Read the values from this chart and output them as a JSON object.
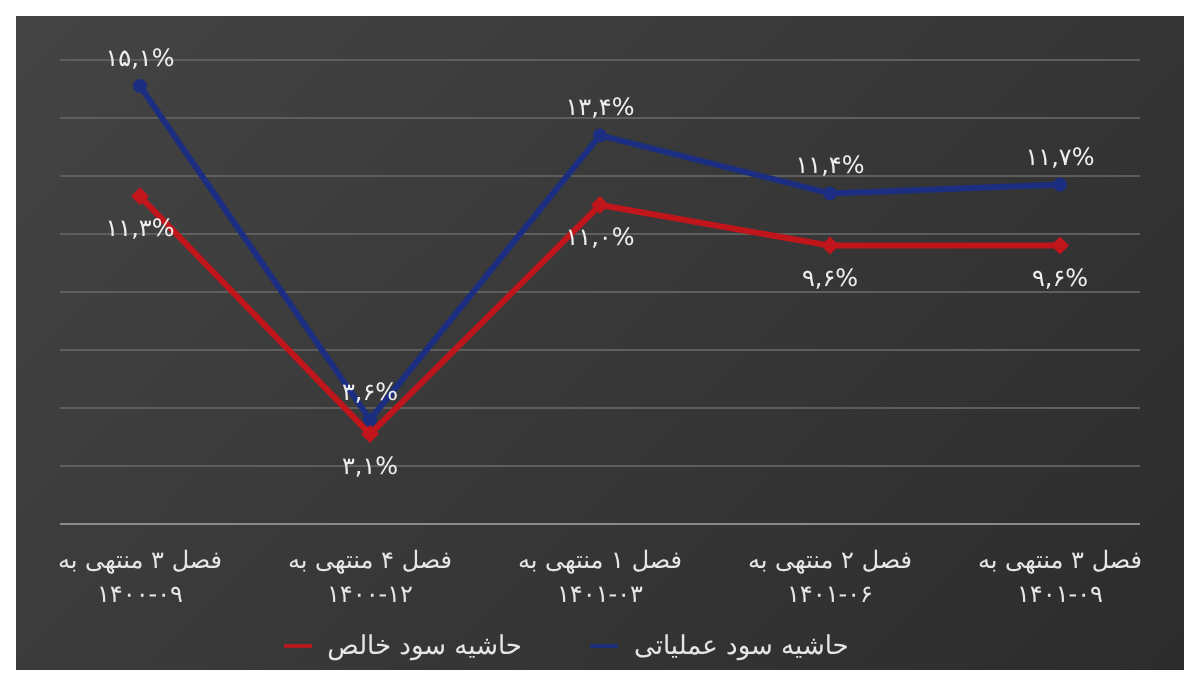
{
  "chart_data": {
    "type": "line",
    "categories": [
      "فصل ۳ منتهی به ۱۴۰۰-۰۹",
      "فصل ۴ منتهی به ۱۴۰۰-۱۲",
      "فصل ۱ منتهی به ۱۴۰۱-۰۳",
      "فصل ۲ منتهی به ۱۴۰۱-۰۶",
      "فصل ۳ منتهی به ۱۴۰۱-۰۹"
    ],
    "series": [
      {
        "name": "حاشیه سود عملیاتی",
        "color": "#1c2e82",
        "marker": "circle",
        "values": [
          15.1,
          3.6,
          13.4,
          11.4,
          11.7
        ],
        "value_labels": [
          "۱۵,۱%",
          "۳,۶%",
          "۱۳,۴%",
          "۱۱,۴%",
          "۱۱,۷%"
        ]
      },
      {
        "name": "حاشیه سود خالص",
        "color": "#c0161b",
        "marker": "diamond",
        "values": [
          11.3,
          3.1,
          11.0,
          9.6,
          9.6
        ],
        "value_labels": [
          "۱۱,۳%",
          "۳,۱%",
          "۱۱,۰%",
          "۹,۶%",
          "۹,۶%"
        ]
      }
    ],
    "ylim": [
      0,
      16
    ],
    "yticks": [
      {
        "value": 0,
        "label": null
      },
      {
        "value": 2,
        "label": null
      },
      {
        "value": 4,
        "label": null
      },
      {
        "value": 6,
        "label": null
      },
      {
        "value": 8,
        "label": null
      },
      {
        "value": 10,
        "label": null
      },
      {
        "value": 12,
        "label": null
      },
      {
        "value": 14,
        "label": null
      },
      {
        "value": 16,
        "label": null
      }
    ],
    "tick_labels": "x",
    "grid": "y",
    "legend": "bottom"
  }
}
